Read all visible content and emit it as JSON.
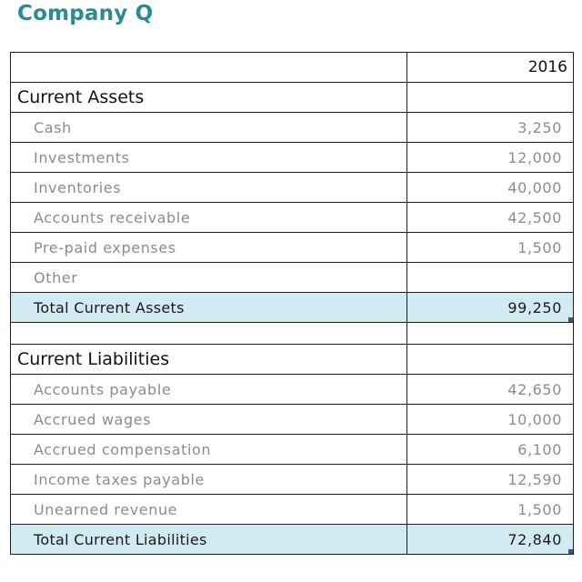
{
  "title": "Company Q",
  "year_header": "2016",
  "current_assets": {
    "heading": "Current Assets",
    "items": [
      {
        "label": "Cash",
        "value": "3,250"
      },
      {
        "label": "Investments",
        "value": "12,000"
      },
      {
        "label": "Inventories",
        "value": "40,000"
      },
      {
        "label": "Accounts receivable",
        "value": "42,500"
      },
      {
        "label": "Pre-paid expenses",
        "value": "1,500"
      },
      {
        "label": "Other",
        "value": ""
      }
    ],
    "total": {
      "label": "Total Current Assets",
      "value": "99,250"
    }
  },
  "current_liabilities": {
    "heading": "Current Liabilities",
    "items": [
      {
        "label": "Accounts payable",
        "value": "42,650"
      },
      {
        "label": "Accrued wages",
        "value": "10,000"
      },
      {
        "label": "Accrued compensation",
        "value": "6,100"
      },
      {
        "label": "Income taxes payable",
        "value": "12,590"
      },
      {
        "label": "Unearned revenue",
        "value": "1,500"
      }
    ],
    "total": {
      "label": "Total Current Liabilities",
      "value": "72,840"
    }
  },
  "colors": {
    "title": "#2b8b95",
    "total_row_fill": "#d2eaf2",
    "item_text": "#8c8c8c"
  }
}
